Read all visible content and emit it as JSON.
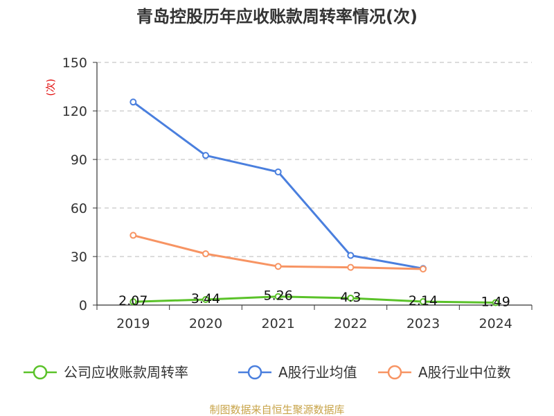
{
  "colors": {
    "company": "#5ac229",
    "industry_mean": "#4a7fde",
    "industry_median": "#f79463",
    "grid": "#c8c8c8",
    "axis": "#333333"
  },
  "chart_data": {
    "type": "line",
    "title": "青岛控股历年应收账款周转率情况(次)",
    "ylabel": "(次)",
    "source": "制图数据来自恒生聚源数据库",
    "categories": [
      "2019",
      "2020",
      "2021",
      "2022",
      "2023",
      "2024"
    ],
    "ylim": [
      0,
      150
    ],
    "yticks": [
      0,
      30,
      60,
      90,
      120,
      150
    ],
    "grid": true,
    "legend_position": "bottom",
    "series": [
      {
        "name": "公司应收账款周转率",
        "color_key": "company",
        "values": [
          2.07,
          3.44,
          5.26,
          4.3,
          2.14,
          1.49
        ],
        "show_labels": true
      },
      {
        "name": "A股行业均值",
        "color_key": "industry_mean",
        "values": [
          125.5,
          92.5,
          82.3,
          30.7,
          22.6,
          null
        ],
        "show_labels": false
      },
      {
        "name": "A股行业中位数",
        "color_key": "industry_median",
        "values": [
          43.1,
          31.7,
          23.9,
          23.3,
          22.3,
          null
        ],
        "show_labels": false
      }
    ]
  }
}
